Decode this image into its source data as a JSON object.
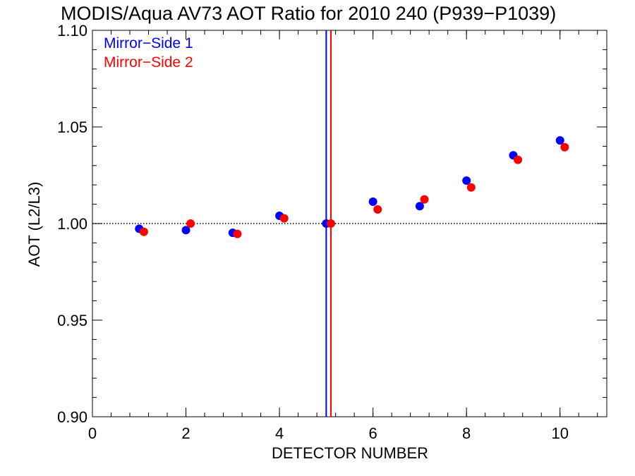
{
  "chart_data": {
    "type": "scatter",
    "title": "MODIS/Aqua AV73 AOT Ratio for 2010 240 (P939−P1039)",
    "xlabel": "DETECTOR NUMBER",
    "ylabel": "AOT (L2/L3)",
    "xlim": [
      0,
      11
    ],
    "ylim": [
      0.9,
      1.1
    ],
    "x_ticks": [
      0,
      2,
      4,
      6,
      8,
      10
    ],
    "x_tick_labels": [
      "0",
      "2",
      "4",
      "6",
      "8",
      "10"
    ],
    "y_ticks": [
      0.9,
      0.95,
      1.0,
      1.05,
      1.1
    ],
    "y_tick_labels": [
      "0.90",
      "0.95",
      "1.00",
      "1.05",
      "1.10"
    ],
    "reference_line": {
      "y": 1.0,
      "style": "dotted",
      "color": "#000000"
    },
    "series": [
      {
        "name": "Mirror−Side 1",
        "color": "#0000ff",
        "x": [
          1,
          2,
          3,
          4,
          5,
          6,
          7,
          8,
          9,
          10
        ],
        "y": [
          0.9973,
          0.9966,
          0.9952,
          1.004,
          1.0,
          1.0113,
          1.009,
          1.0222,
          1.0353,
          1.043
        ],
        "vline_x": 5.0
      },
      {
        "name": "Mirror−Side 2",
        "color": "#ff0000",
        "x": [
          1.1,
          2.1,
          3.1,
          4.1,
          5.1,
          6.1,
          7.1,
          8.1,
          9.1,
          10.1
        ],
        "y": [
          0.9957,
          1.0,
          0.9946,
          1.0027,
          1.0,
          1.0073,
          1.0125,
          1.0187,
          1.033,
          1.0395
        ],
        "vline_x": 5.1
      }
    ],
    "legend": {
      "position": "top-left",
      "entries": [
        "Mirror−Side 1",
        "Mirror−Side 2"
      ]
    },
    "grid": false
  }
}
